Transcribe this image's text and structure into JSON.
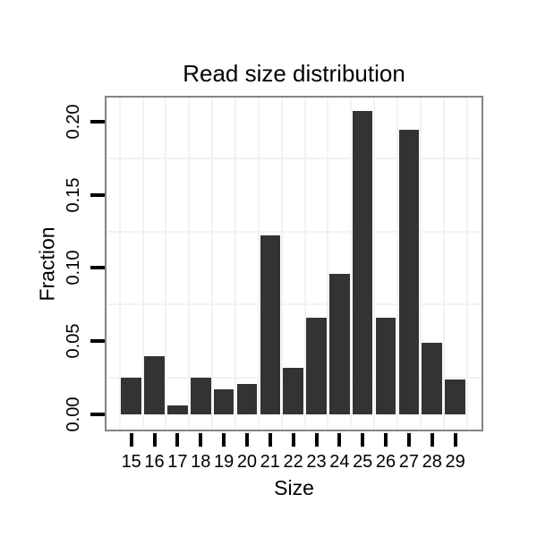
{
  "chart_data": {
    "type": "bar",
    "title": "Read size distribution",
    "xlabel": "Size",
    "ylabel": "Fraction",
    "categories": [
      "15",
      "16",
      "17",
      "18",
      "19",
      "20",
      "21",
      "22",
      "23",
      "24",
      "25",
      "26",
      "27",
      "28",
      "29"
    ],
    "values": [
      0.025,
      0.04,
      0.006,
      0.025,
      0.017,
      0.021,
      0.122,
      0.032,
      0.066,
      0.096,
      0.207,
      0.066,
      0.194,
      0.049,
      0.024
    ],
    "yticks": [
      {
        "value": 0.0,
        "label": "0.00"
      },
      {
        "value": 0.05,
        "label": "0.05"
      },
      {
        "value": 0.1,
        "label": "0.10"
      },
      {
        "value": 0.15,
        "label": "0.15"
      },
      {
        "value": 0.2,
        "label": "0.20"
      }
    ],
    "ylim": [
      -0.0114,
      0.2175
    ],
    "minor_gridlines_y": [
      0.025,
      0.075,
      0.125,
      0.175
    ],
    "grid": {
      "horizontal": "minor lines only",
      "vertical": "between categories",
      "style": "light grey on white panel"
    },
    "legend_position": "none",
    "colors": {
      "bar": "#333333",
      "panel_border": "#848484",
      "grid": "#f2f2f2",
      "tick": "#000000",
      "text": "#000000",
      "background": "#ffffff"
    }
  }
}
